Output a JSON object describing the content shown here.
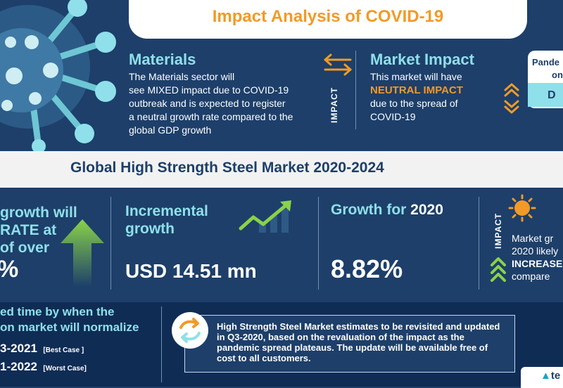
{
  "header": {
    "title": "Impact Analysis of COVID-19"
  },
  "materials": {
    "title": "Materials",
    "lines": [
      "The Materials sector will",
      "see MIXED  impact due to COVID-19",
      "outbreak and is expected to register",
      "a neutral growth rate compared to the",
      "global GDP growth"
    ]
  },
  "impact_label": "IMPACT",
  "market_impact": {
    "title": "Market Impact",
    "line1": "This market will have",
    "highlight": "NEUTRAL IMPACT",
    "line3": "due to the spread of",
    "line4": "COVID-19"
  },
  "pandemic": {
    "line1": "Pande",
    "line2": "on",
    "value": "D"
  },
  "band": {
    "title": "Global High Strength Steel Market 2020-2024"
  },
  "left_stat": {
    "lines": [
      "growth will",
      "RATE at",
      "of over"
    ],
    "value": "%"
  },
  "incremental": {
    "title_line1": "Incremental",
    "title_line2": "growth",
    "value": "USD 14.51 mn"
  },
  "growth2020": {
    "title": "Growth for ",
    "title_year": "2020",
    "value": "8.82%"
  },
  "right_impact": {
    "label": "IMPACT",
    "line1": "Market gr",
    "line2": "2020 likely",
    "highlight": "INCREASE",
    "line4": "compare"
  },
  "bottom_left": {
    "title_line1": "ed time by when the",
    "title_line2": "on market will normalize",
    "best_years": "3-2021",
    "best_tag": "[Best Case ]",
    "worst_years": "1-2022",
    "worst_tag": "[Worst Case]"
  },
  "note": {
    "text": "High Strength Steel Market estimates to be revisited and updated in Q3-2020, based on the revaluation of the impact as the pandemic spread plateaus. The update will be available free of cost to all customers."
  },
  "footer": {
    "brand": "te"
  },
  "colors": {
    "navy": "#1d3f6a",
    "dark_navy": "#0f2c55",
    "cyan": "#8fe0ea",
    "orange": "#f29a26",
    "green": "#8ad24a"
  },
  "icons": [
    "virus-icon",
    "swap-arrows-icon",
    "up-down-arrows-icon",
    "up-arrow-icon",
    "trend-line-icon",
    "sun-icon",
    "chevron-up-icon",
    "refresh-icon",
    "brand-logo-icon"
  ]
}
